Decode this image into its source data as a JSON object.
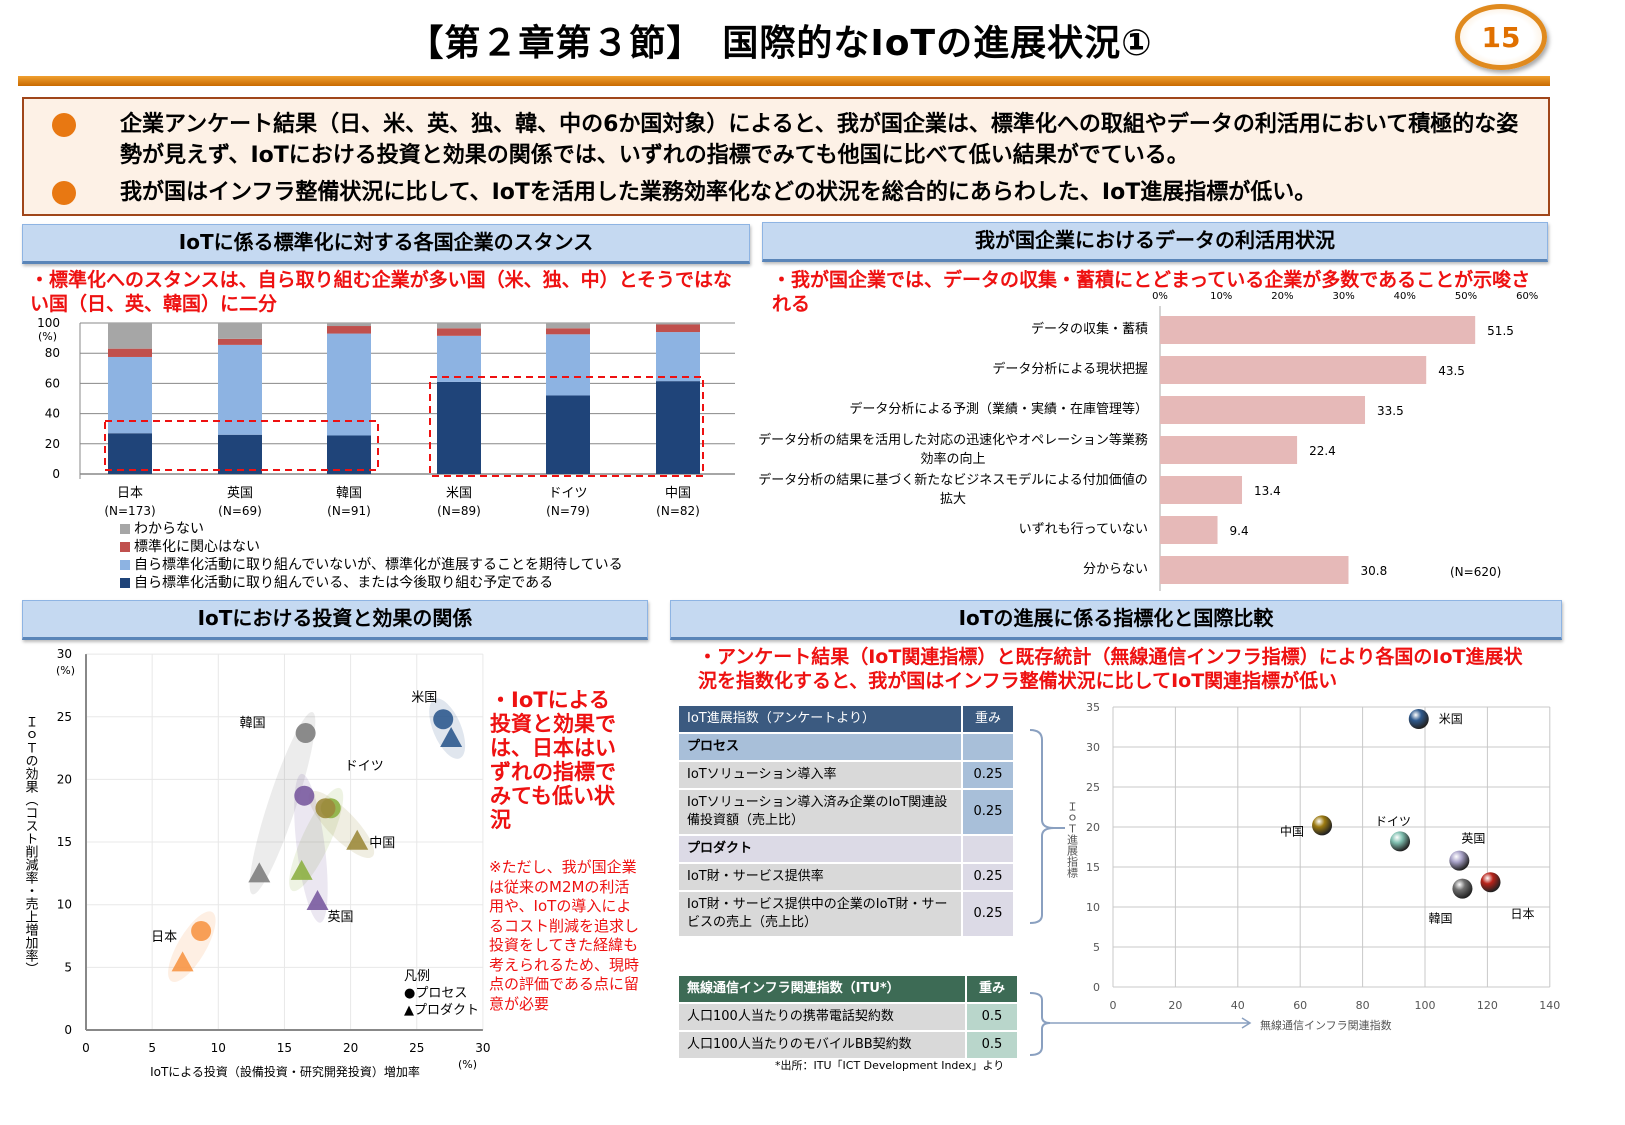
{
  "title": "【第２章第３節】　国際的なIoTの進展状況①",
  "page_number": "15",
  "summary": [
    "企業アンケート結果（日、米、英、独、韓、中の6か国対象）によると、我が国企業は、標準化への取組やデータの利活用において積極的な姿勢が見えず、IoTにおける投資と効果の関係では、いずれの指標でみても他国に比べて低い結果がでている。",
    "我が国はインフラ整備状況に比して、IoTを活用した業務効率化などの状況を総合的にあらわした、IoT進展指標が低い。"
  ],
  "colors": {
    "accent": "#e87812",
    "red": "#ee1111",
    "header_bg": "#c5d9f1"
  },
  "sections": {
    "standardization": {
      "title": "IoTに係る標準化に対する各国企業のスタンス",
      "note": "・標準化へのスタンスは、自ら取り組む企業が多い国（米、独、中）とそうではない国（日、英、韓国）に二分"
    },
    "data_use": {
      "title": "我が国企業におけるデータの利活用状況",
      "note": "・我が国企業では、データの収集・蓄積にとどまっている企業が多数であることが示唆される"
    },
    "investment": {
      "title": "IoTにおける投資と効果の関係",
      "note": "・IoTによる投資と効果では、日本はいずれの指標でみても低い状況",
      "caveat": "※ただし、我が国企業は従来のM2Mの利活用や、IoTの導入によるコスト削減を追求し投資をしてきた経緯も考えられるため、現時点の評価である点に留意が必要"
    },
    "index": {
      "title": "IoTの進展に係る指標化と国際比較",
      "note": "・アンケート結果（IoT関連指標）と既存統計（無線通信インフラ指標）により各国のIoT進展状況を指数化すると、我が国はインフラ整備状況に比してIoT関連指標が低い"
    }
  },
  "chart_data": [
    {
      "type": "bar",
      "stacked": true,
      "ylabel": "(%)",
      "ylim": [
        0,
        100
      ],
      "yticks": [
        0,
        20,
        40,
        60,
        80,
        100
      ],
      "grid": true,
      "legend_position": "bottom",
      "categories": [
        "日本",
        "英国",
        "韓国",
        "米国",
        "ドイツ",
        "中国"
      ],
      "category_n": [
        "(N=173)",
        "(N=69)",
        "(N=91)",
        "(N=89)",
        "(N=79)",
        "(N=82)"
      ],
      "series": [
        {
          "name": "自ら標準化活動に取り組んでいる、または今後取り組む予定である",
          "color": "#1f4479",
          "values": [
            27,
            26,
            25.5,
            61,
            52,
            61.5
          ]
        },
        {
          "name": "自ら標準化活動に取り組んでいないが、標準化が進展することを期待している",
          "color": "#8db3e2",
          "values": [
            50.5,
            59.5,
            67.5,
            30.5,
            40.5,
            32.5
          ]
        },
        {
          "name": "標準化に関心はない",
          "color": "#c0504d",
          "values": [
            5.5,
            4,
            5,
            5,
            4,
            5
          ]
        },
        {
          "name": "わからない",
          "color": "#a6a6a6",
          "values": [
            17,
            10.5,
            2,
            3.5,
            3.5,
            1
          ]
        }
      ]
    },
    {
      "type": "bar",
      "orientation": "horizontal",
      "xlim": [
        0,
        60
      ],
      "xticks": [
        "0%",
        "10%",
        "20%",
        "30%",
        "40%",
        "50%",
        "60%"
      ],
      "color": "#e6b9b8",
      "n_label": "(N=620)",
      "categories": [
        "データの収集・蓄積",
        "データ分析による現状把握",
        "データ分析による予測（業績・実績・在庫管理等）",
        "データ分析の結果を活用した対応の迅速化やオペレーション等業務効率の向上",
        "データ分析の結果に基づく新たなビジネスモデルによる付加価値の拡大",
        "いずれも行っていない",
        "分からない"
      ],
      "values": [
        51.5,
        43.5,
        33.5,
        22.4,
        13.4,
        9.4,
        30.8
      ]
    },
    {
      "type": "scatter",
      "xlabel": "IoTによる投資（設備投資・研究開発投資）増加率",
      "xunit": "(%)",
      "ylabel": "ＩｏＴの効果（コスト削減率・売上増加率）",
      "yunit": "(%)",
      "xlim": [
        0,
        30
      ],
      "ylim": [
        0,
        30
      ],
      "xticks": [
        0,
        5,
        10,
        15,
        20,
        25,
        30
      ],
      "yticks": [
        0,
        5,
        10,
        15,
        20,
        25,
        30
      ],
      "grid": true,
      "legend": {
        "title": "凡例",
        "process": "●プロセス",
        "product": "▲プロダクト"
      },
      "series": [
        {
          "name": "米国",
          "color": "#2f5a8e",
          "process": [
            27.0,
            24.8
          ],
          "product": [
            27.6,
            23.3
          ]
        },
        {
          "name": "韓国",
          "color": "#808080",
          "process": [
            16.6,
            23.7
          ],
          "product": [
            13.1,
            12.5
          ]
        },
        {
          "name": "ドイツ",
          "color": "#8db043",
          "process": [
            18.5,
            17.7
          ],
          "product": [
            16.3,
            12.7
          ]
        },
        {
          "name": "中国",
          "color": "#9c8a3c",
          "process": [
            18.1,
            17.7
          ],
          "product": [
            20.5,
            15.1
          ]
        },
        {
          "name": "英国",
          "color": "#7a5ba0",
          "process": [
            16.5,
            18.7
          ],
          "product": [
            17.5,
            10.3
          ]
        },
        {
          "name": "日本",
          "color": "#f79646",
          "process": [
            8.7,
            7.9
          ],
          "product": [
            7.3,
            5.4
          ]
        }
      ]
    },
    {
      "type": "scatter",
      "xlabel": "無線通信インフラ関連指数",
      "ylabel": "ＩｏＴ進展指標",
      "xlim": [
        0,
        140
      ],
      "ylim": [
        0,
        35
      ],
      "xticks": [
        0,
        20,
        40,
        60,
        80,
        100,
        120,
        140
      ],
      "yticks": [
        0,
        5,
        10,
        15,
        20,
        25,
        30,
        35
      ],
      "grid": true,
      "points": [
        {
          "name": "米国",
          "x": 98,
          "y": 33.5,
          "color": "#2f5a8e"
        },
        {
          "name": "中国",
          "x": 67,
          "y": 20.2,
          "color": "#9c7a10"
        },
        {
          "name": "ドイツ",
          "x": 92,
          "y": 18.2,
          "color": "#7fbfb0"
        },
        {
          "name": "英国",
          "x": 111,
          "y": 15.8,
          "color": "#a9a3c9"
        },
        {
          "name": "韓国",
          "x": 112,
          "y": 12.3,
          "color": "#707070"
        },
        {
          "name": "日本",
          "x": 121,
          "y": 13.1,
          "color": "#b8231a"
        }
      ]
    }
  ],
  "iot_table": {
    "header": [
      "IoT進展指数（アンケートより）",
      "重み"
    ],
    "rows": [
      {
        "label": "プロセス",
        "weight": "",
        "kind": "process-head"
      },
      {
        "label": "IoTソリューション導入率",
        "weight": "0.25",
        "kind": "process"
      },
      {
        "label": "IoTソリューション導入済み企業のIoT関連設備投資額（売上比）",
        "weight": "0.25",
        "kind": "process"
      },
      {
        "label": "プロダクト",
        "weight": "",
        "kind": "product-head"
      },
      {
        "label": "IoT財・サービス提供率",
        "weight": "0.25",
        "kind": "product"
      },
      {
        "label": "IoT財・サービス提供中の企業のIoT財・サービスの売上（売上比）",
        "weight": "0.25",
        "kind": "product"
      }
    ]
  },
  "infra_table": {
    "header": [
      "無線通信インフラ関連指数（ITU*）",
      "重み"
    ],
    "rows": [
      {
        "label": "人口100人当たりの携帯電話契約数",
        "weight": "0.5"
      },
      {
        "label": "人口100人当たりのモバイルBB契約数",
        "weight": "0.5"
      }
    ]
  },
  "source": "*出所：ITU「ICT Development Index」より"
}
